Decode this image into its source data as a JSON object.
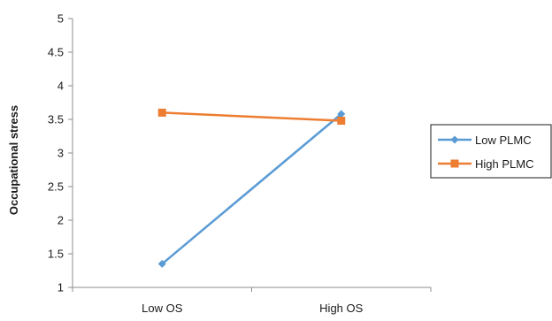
{
  "chart_data": {
    "type": "line",
    "title": "",
    "xlabel": "",
    "ylabel": "Occupational stress",
    "categories": [
      "Low OS",
      "High OS"
    ],
    "series": [
      {
        "name": "Low PLMC",
        "values": [
          1.35,
          3.58
        ],
        "color": "#5B9BD5",
        "marker": "diamond"
      },
      {
        "name": "High PLMC",
        "values": [
          3.6,
          3.48
        ],
        "color": "#ED7D31",
        "marker": "square"
      }
    ],
    "ylim": [
      1,
      5
    ],
    "yticks": [
      "1",
      "1.5",
      "2",
      "2.5",
      "3",
      "3.5",
      "4",
      "4.5",
      "5"
    ],
    "grid": false,
    "legend_position": "right"
  }
}
